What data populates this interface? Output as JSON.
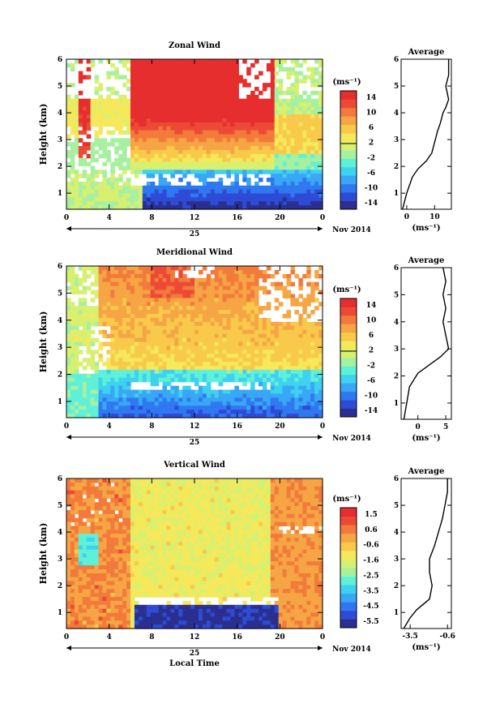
{
  "chart_data": [
    {
      "type": "heatmap",
      "title": "Zonal Wind",
      "ylabel": "Height (km)",
      "xlabel": "",
      "x_ticks": [
        "0",
        "4",
        "8",
        "12",
        "16",
        "20",
        "0"
      ],
      "y_ticks": [
        "1",
        "2",
        "3",
        "4",
        "5",
        "6"
      ],
      "xlim": [
        0,
        24
      ],
      "ylim": [
        0.4,
        6.0
      ],
      "date_day": "25",
      "date_month": "Nov 2014",
      "colorbar": {
        "unit": "(ms⁻¹)",
        "ticks": [
          "14",
          "10",
          "6",
          "2",
          "-2",
          "-6",
          "-10",
          "-14"
        ],
        "range": [
          -16,
          16
        ]
      },
      "profile": {
        "title": "Average",
        "xlabel": "(ms⁻¹)",
        "x_ticks": [
          "0",
          "10"
        ],
        "xlim": [
          -2,
          16
        ],
        "points": [
          [
            -1.5,
            0.4
          ],
          [
            0,
            1.0
          ],
          [
            2,
            1.6
          ],
          [
            4,
            1.9
          ],
          [
            7,
            2.2
          ],
          [
            9,
            2.5
          ],
          [
            10,
            2.9
          ],
          [
            11,
            3.3
          ],
          [
            12,
            3.6
          ],
          [
            13,
            4.0
          ],
          [
            14,
            4.2
          ],
          [
            15,
            4.5
          ],
          [
            14,
            5.0
          ],
          [
            15,
            5.4
          ],
          [
            15,
            6.0
          ]
        ]
      },
      "description_regions": [
        {
          "x0": 6,
          "x1": 19,
          "y0": 3.2,
          "y1": 6.0,
          "value": 15
        },
        {
          "x0": 6,
          "x1": 19,
          "y0": 2.5,
          "y1": 3.2,
          "value": 8
        },
        {
          "x0": 6,
          "x1": 19,
          "y0": 2.1,
          "y1": 2.5,
          "value": 3
        },
        {
          "x0": 14,
          "x1": 24,
          "y0": 0.8,
          "y1": 1.8,
          "value": -8
        },
        {
          "x0": 0,
          "x1": 6,
          "y0": 0.4,
          "y1": 3.0,
          "value": 0
        }
      ]
    },
    {
      "type": "heatmap",
      "title": "Meridional Wind",
      "ylabel": "Height (km)",
      "xlabel": "",
      "x_ticks": [
        "0",
        "4",
        "8",
        "12",
        "16",
        "20",
        "0"
      ],
      "y_ticks": [
        "1",
        "2",
        "3",
        "4",
        "5",
        "6"
      ],
      "xlim": [
        0,
        24
      ],
      "ylim": [
        0.4,
        6.0
      ],
      "date_day": "25",
      "date_month": "Nov 2014",
      "colorbar": {
        "unit": "(ms⁻¹)",
        "ticks": [
          "14",
          "10",
          "6",
          "2",
          "-2",
          "-6",
          "-10",
          "-14"
        ],
        "range": [
          -16,
          16
        ]
      },
      "profile": {
        "title": "Average",
        "xlabel": "(ms⁻¹)",
        "x_ticks": [
          "0",
          "5"
        ],
        "xlim": [
          -3,
          6
        ],
        "points": [
          [
            -2.5,
            0.4
          ],
          [
            -2,
            1.0
          ],
          [
            -1.5,
            1.6
          ],
          [
            0,
            2.1
          ],
          [
            2,
            2.4
          ],
          [
            4,
            2.7
          ],
          [
            5.5,
            3.0
          ],
          [
            5,
            3.5
          ],
          [
            4.5,
            4.0
          ],
          [
            5,
            4.5
          ],
          [
            4.5,
            5.0
          ],
          [
            5,
            5.5
          ],
          [
            4.5,
            6.0
          ]
        ]
      }
    },
    {
      "type": "heatmap",
      "title": "Vertical Wind",
      "ylabel": "Height (km)",
      "xlabel": "Local Time",
      "x_ticks": [
        "0",
        "4",
        "8",
        "12",
        "16",
        "20",
        "0"
      ],
      "y_ticks": [
        "1",
        "2",
        "3",
        "4",
        "5",
        "6"
      ],
      "xlim": [
        0,
        24
      ],
      "ylim": [
        0.4,
        6.0
      ],
      "date_day": "25",
      "date_month": "Nov 2014",
      "colorbar": {
        "unit": "(ms⁻¹)",
        "ticks": [
          "1.5",
          "0.6",
          "-0.6",
          "-1.6",
          "-2.5",
          "-3.5",
          "-4.5",
          "-5.5"
        ],
        "range": [
          -6,
          2
        ]
      },
      "profile": {
        "title": "Average",
        "xlabel": "(ms⁻¹)",
        "x_ticks": [
          "-3.5",
          "-0.6"
        ],
        "xlim": [
          -4.2,
          -0.3
        ],
        "points": [
          [
            -4,
            0.4
          ],
          [
            -3.5,
            0.8
          ],
          [
            -3,
            1.1
          ],
          [
            -2,
            1.5
          ],
          [
            -1.8,
            2.0
          ],
          [
            -2,
            2.5
          ],
          [
            -2,
            3.0
          ],
          [
            -1.6,
            3.5
          ],
          [
            -1.3,
            4.0
          ],
          [
            -1,
            4.5
          ],
          [
            -0.8,
            5.0
          ],
          [
            -0.6,
            5.5
          ],
          [
            -0.6,
            6.0
          ]
        ]
      }
    }
  ],
  "colors": {
    "scale": [
      "#2b2f8f",
      "#2e4bd6",
      "#2f78f0",
      "#39a7f5",
      "#3fd1f0",
      "#5ff0d8",
      "#a6f0a0",
      "#d8f070",
      "#f5e85a",
      "#f8c94a",
      "#f6a545",
      "#f27a3a",
      "#ec4a36",
      "#e62e2e"
    ]
  }
}
